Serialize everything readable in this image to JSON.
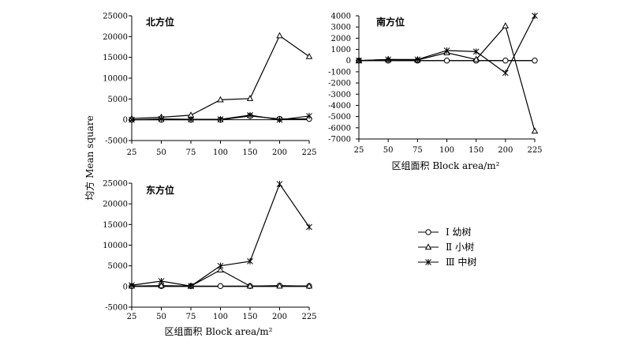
{
  "figure": {
    "ylabel_shared": "均方 Mean square",
    "xlabel": "区组面积 Block area/m²",
    "legend": {
      "s1": "Ⅰ 幼树",
      "s2": "Ⅱ 小树",
      "s3": "Ⅲ 中树"
    }
  },
  "chart_data": [
    {
      "type": "line",
      "title": "北方位",
      "xlabel": "",
      "ylabel": "均方 Mean square",
      "categories": [
        "25",
        "50",
        "75",
        "100",
        "150",
        "200",
        "225"
      ],
      "ylim": [
        -5000,
        25000
      ],
      "yticks": [
        -5000,
        0,
        5000,
        10000,
        15000,
        20000,
        25000
      ],
      "series": [
        {
          "name": "Ⅰ 幼树",
          "marker": "circle",
          "values": [
            0,
            0,
            0,
            0,
            900,
            200,
            200
          ]
        },
        {
          "name": "Ⅱ 小树",
          "marker": "triangle",
          "values": [
            300,
            600,
            1100,
            4800,
            5100,
            20200,
            15200
          ]
        },
        {
          "name": "Ⅲ 中树",
          "marker": "star",
          "values": [
            0,
            200,
            100,
            100,
            1100,
            0,
            900
          ]
        }
      ]
    },
    {
      "type": "line",
      "title": "南方位",
      "xlabel": "区组面积 Block area/m²",
      "ylabel": "",
      "categories": [
        "25",
        "50",
        "75",
        "100",
        "150",
        "200",
        "225"
      ],
      "ylim": [
        -7000,
        4000
      ],
      "yticks": [
        -7000,
        -6000,
        -5000,
        -4000,
        -3000,
        -2000,
        -1000,
        0,
        1000,
        2000,
        3000,
        4000
      ],
      "series": [
        {
          "name": "Ⅰ 幼树",
          "marker": "circle",
          "values": [
            0,
            0,
            0,
            0,
            0,
            0,
            0
          ]
        },
        {
          "name": "Ⅱ 小树",
          "marker": "triangle",
          "values": [
            0,
            100,
            50,
            700,
            100,
            3100,
            -6300
          ]
        },
        {
          "name": "Ⅲ 中树",
          "marker": "star",
          "values": [
            0,
            100,
            100,
            900,
            800,
            -1100,
            4000
          ]
        }
      ]
    },
    {
      "type": "line",
      "title": "东方位",
      "xlabel": "区组面积 Block area/m²",
      "ylabel": "均方 Mean square",
      "categories": [
        "25",
        "50",
        "75",
        "100",
        "150",
        "200",
        "225"
      ],
      "ylim": [
        -5000,
        25000
      ],
      "yticks": [
        -5000,
        0,
        5000,
        10000,
        15000,
        20000,
        25000
      ],
      "series": [
        {
          "name": "Ⅰ 幼树",
          "marker": "circle",
          "values": [
            100,
            100,
            100,
            100,
            100,
            200,
            100
          ]
        },
        {
          "name": "Ⅱ 小树",
          "marker": "triangle",
          "values": [
            100,
            200,
            100,
            4000,
            100,
            100,
            100
          ]
        },
        {
          "name": "Ⅲ 中树",
          "marker": "star",
          "values": [
            300,
            1300,
            100,
            5000,
            6100,
            24800,
            14400
          ]
        }
      ]
    }
  ]
}
